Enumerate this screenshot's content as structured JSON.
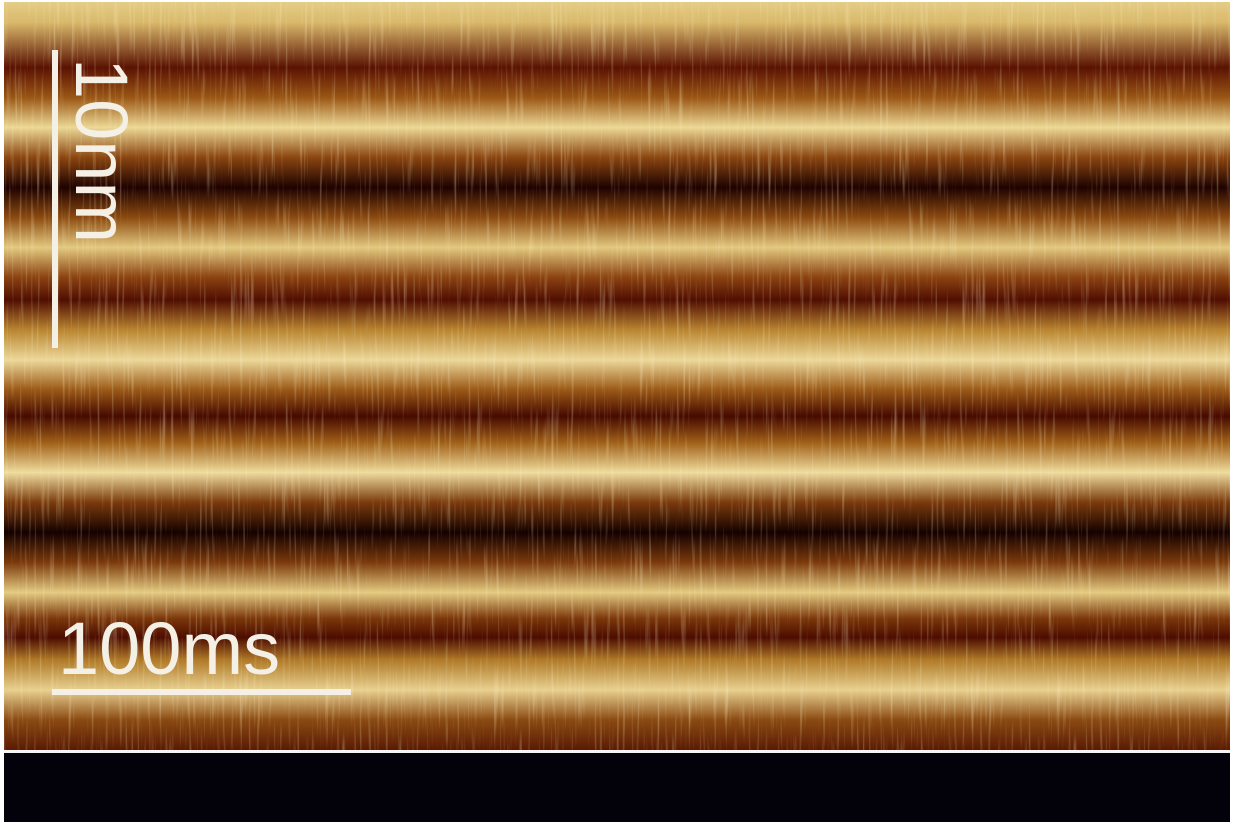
{
  "scale_bars": {
    "vertical": {
      "label": "10nm"
    },
    "horizontal": {
      "label": "100ms"
    }
  }
}
